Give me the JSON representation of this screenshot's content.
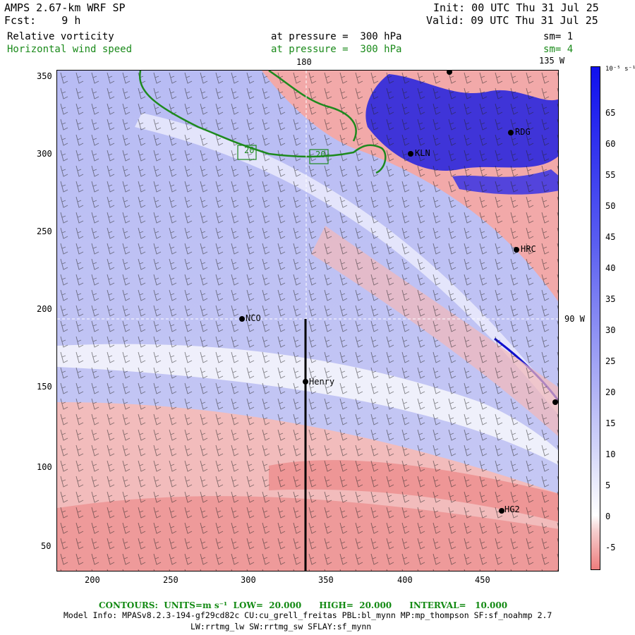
{
  "header": {
    "model": "AMPS 2.67-km WRF SP",
    "fcst": "Fcst:    9 h",
    "init": "Init: 00 UTC Thu 31 Jul 25",
    "valid": "Valid: 09 UTC Thu 31 Jul 25"
  },
  "fields": [
    {
      "name": "Relative vorticity",
      "level": "at pressure =  300 hPa",
      "sm": "sm= 1",
      "color": "#000000"
    },
    {
      "name": "Horizontal wind speed",
      "level": "at pressure =  300 hPa",
      "sm": "sm= 4",
      "color": "#1a8a1a"
    }
  ],
  "map": {
    "x_ticks": [
      "200",
      "250",
      "300",
      "350",
      "400",
      "450"
    ],
    "y_ticks": [
      "350",
      "300",
      "250",
      "200",
      "150",
      "100",
      "50"
    ],
    "meridian_labels": {
      "top_180": "180",
      "top_135w": "135 W",
      "right_90w": "90 W"
    },
    "stations": [
      {
        "name": "RDG"
      },
      {
        "name": "KLN"
      },
      {
        "name": "HRC"
      },
      {
        "name": "NCO"
      },
      {
        "name": "Henry"
      },
      {
        "name": "HG2"
      }
    ],
    "contour_labels": [
      "20",
      "20"
    ]
  },
  "colorbar": {
    "units": "10⁻⁵ s⁻¹",
    "labels": [
      "65",
      "60",
      "55",
      "50",
      "45",
      "40",
      "35",
      "30",
      "25",
      "20",
      "15",
      "10",
      "5",
      "0",
      "-5"
    ],
    "colors": {
      "max_blue": "#1010ee",
      "mid_blue": "#8a8ef0",
      "white": "#ffffff",
      "mid_red": "#f0a0a0",
      "max_red": "#ee7a7a"
    }
  },
  "footer": {
    "contours": "CONTOURS:  UNITS=m s⁻¹  LOW=  20.000      HIGH=  20.000      INTERVAL=   10.000",
    "model_info_1": "Model Info: MPASv8.2.3-194-gf29cd82c CU:cu_grell_freitas PBL:bl_mynn MP:mp_thompson SF:sf_noahmp 2.7",
    "model_info_2": "LW:rrtmg_lw SW:rrtmg_sw SFLAY:sf_mynn"
  }
}
